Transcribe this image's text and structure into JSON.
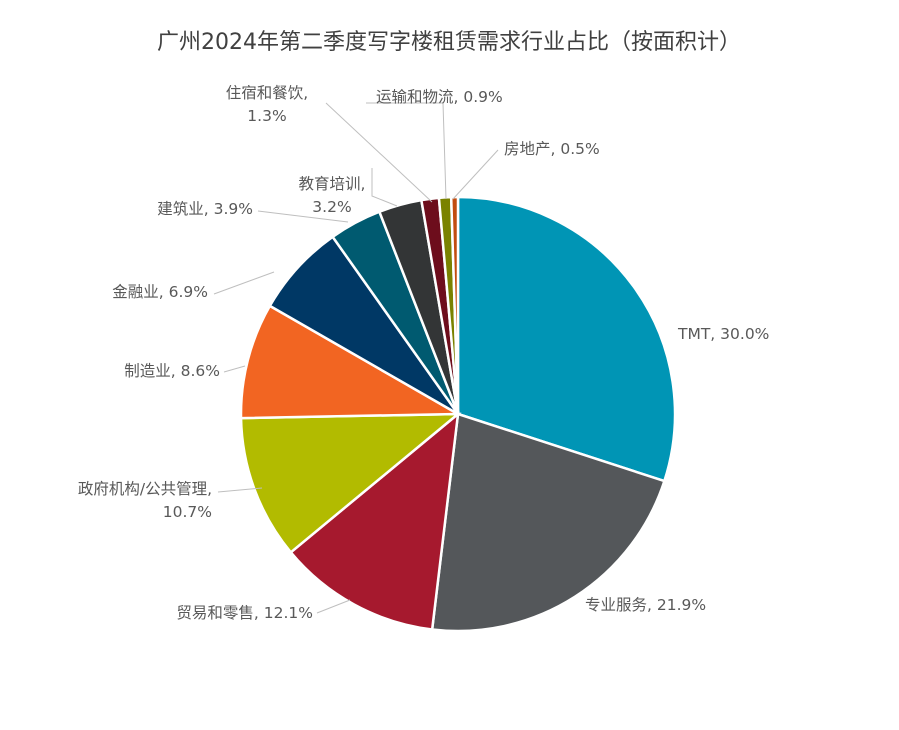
{
  "chart_data": {
    "type": "pie",
    "title": "广州2024年第二季度写字楼租赁需求行业占比（按面积计）",
    "slices": [
      {
        "name": "TMT",
        "value": 30.0,
        "label_lines": [
          "TMT, 30.0%"
        ],
        "color": "#0095b5"
      },
      {
        "name": "专业服务",
        "value": 21.9,
        "label_lines": [
          "专业服务, 21.9%"
        ],
        "color": "#54575a"
      },
      {
        "name": "贸易和零售",
        "value": 12.1,
        "label_lines": [
          "贸易和零售, 12.1%"
        ],
        "color": "#a6192e"
      },
      {
        "name": "政府机构/公共管理",
        "value": 10.7,
        "label_lines": [
          "政府机构/公共管理,",
          "10.7%"
        ],
        "color": "#b2bb00"
      },
      {
        "name": "制造业",
        "value": 8.6,
        "label_lines": [
          "制造业, 8.6%"
        ],
        "color": "#f26522"
      },
      {
        "name": "金融业",
        "value": 6.9,
        "label_lines": [
          "金融业, 6.9%"
        ],
        "color": "#003865"
      },
      {
        "name": "建筑业",
        "value": 3.9,
        "label_lines": [
          "建筑业, 3.9%"
        ],
        "color": "#005a70"
      },
      {
        "name": "教育培训",
        "value": 3.2,
        "label_lines": [
          "教育培训,",
          "3.2%"
        ],
        "color": "#333536"
      },
      {
        "name": "住宿和餐饮",
        "value": 1.3,
        "label_lines": [
          "住宿和餐饮,",
          "1.3%"
        ],
        "color": "#6d0d1c"
      },
      {
        "name": "运输和物流",
        "value": 0.9,
        "label_lines": [
          "运输和物流, 0.9%"
        ],
        "color": "#7a8200"
      },
      {
        "name": "房地产",
        "value": 0.5,
        "label_lines": [
          "房地产, 0.5%"
        ],
        "color": "#c24d10"
      }
    ]
  }
}
